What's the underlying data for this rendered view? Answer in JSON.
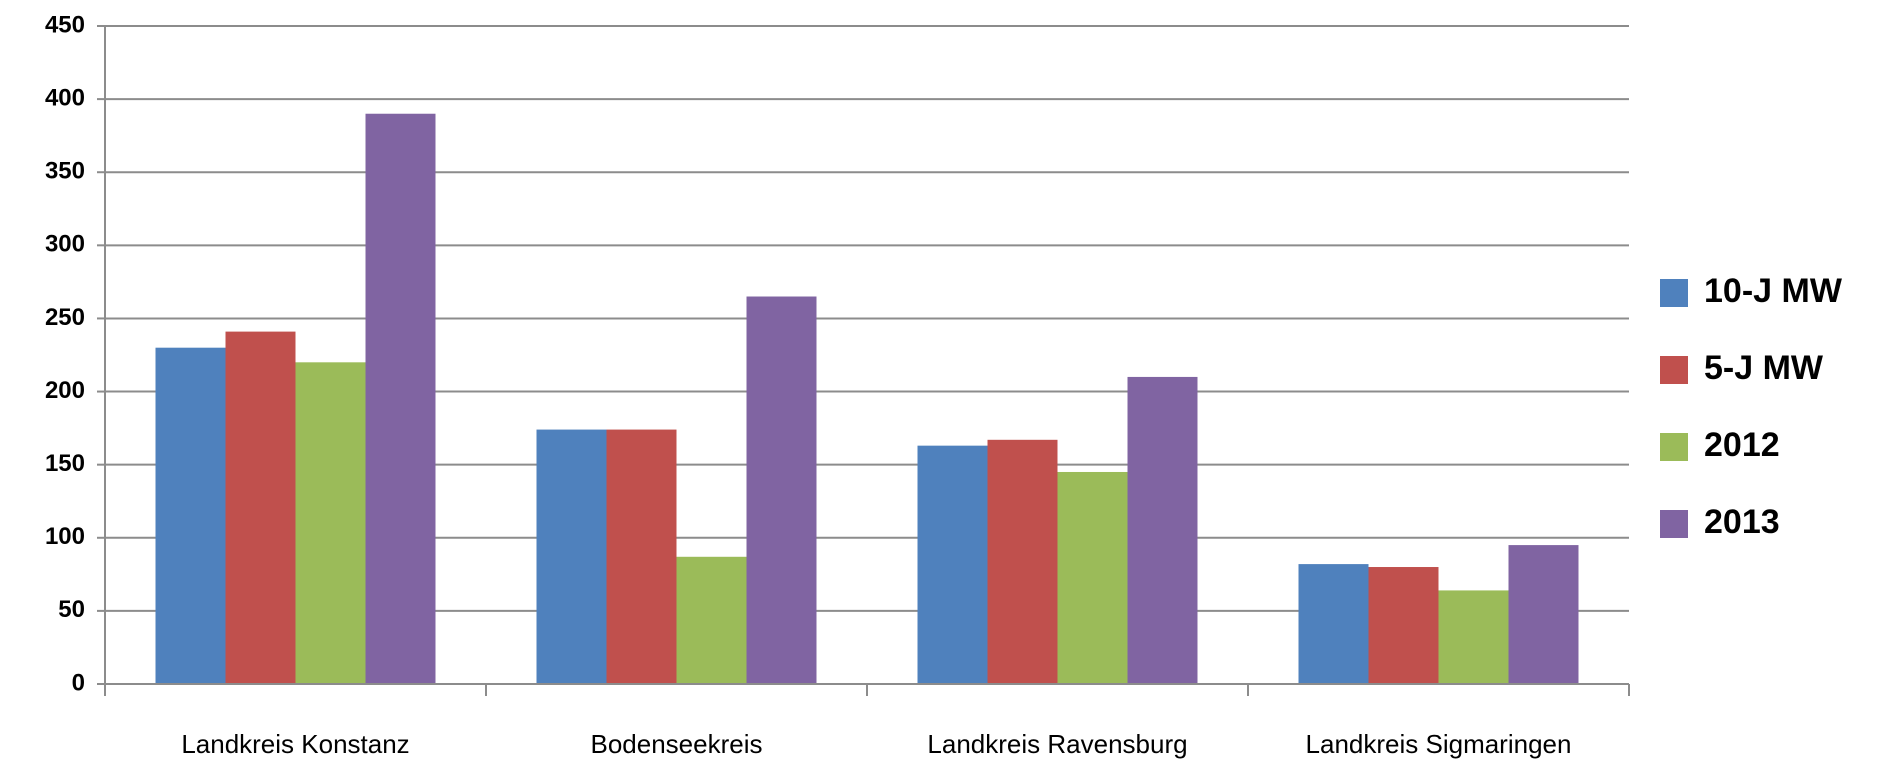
{
  "chart_data": {
    "type": "bar",
    "categories": [
      "Landkreis Konstanz",
      "Bodenseekreis",
      "Landkreis Ravensburg",
      "Landkreis Sigmaringen"
    ],
    "series": [
      {
        "name": "10-J MW",
        "color": "#4f81bd",
        "values": [
          230,
          174,
          163,
          82
        ]
      },
      {
        "name": "5-J MW",
        "color": "#c0504d",
        "values": [
          241,
          174,
          167,
          80
        ]
      },
      {
        "name": "2012",
        "color": "#9bbb59",
        "values": [
          220,
          87,
          145,
          64
        ]
      },
      {
        "name": "2013",
        "color": "#8064a2",
        "values": [
          390,
          265,
          210,
          95
        ]
      }
    ],
    "ylim": [
      0,
      450
    ],
    "yticks": [
      0,
      50,
      100,
      150,
      200,
      250,
      300,
      350,
      400,
      450
    ],
    "grid": true,
    "legend": "right"
  }
}
